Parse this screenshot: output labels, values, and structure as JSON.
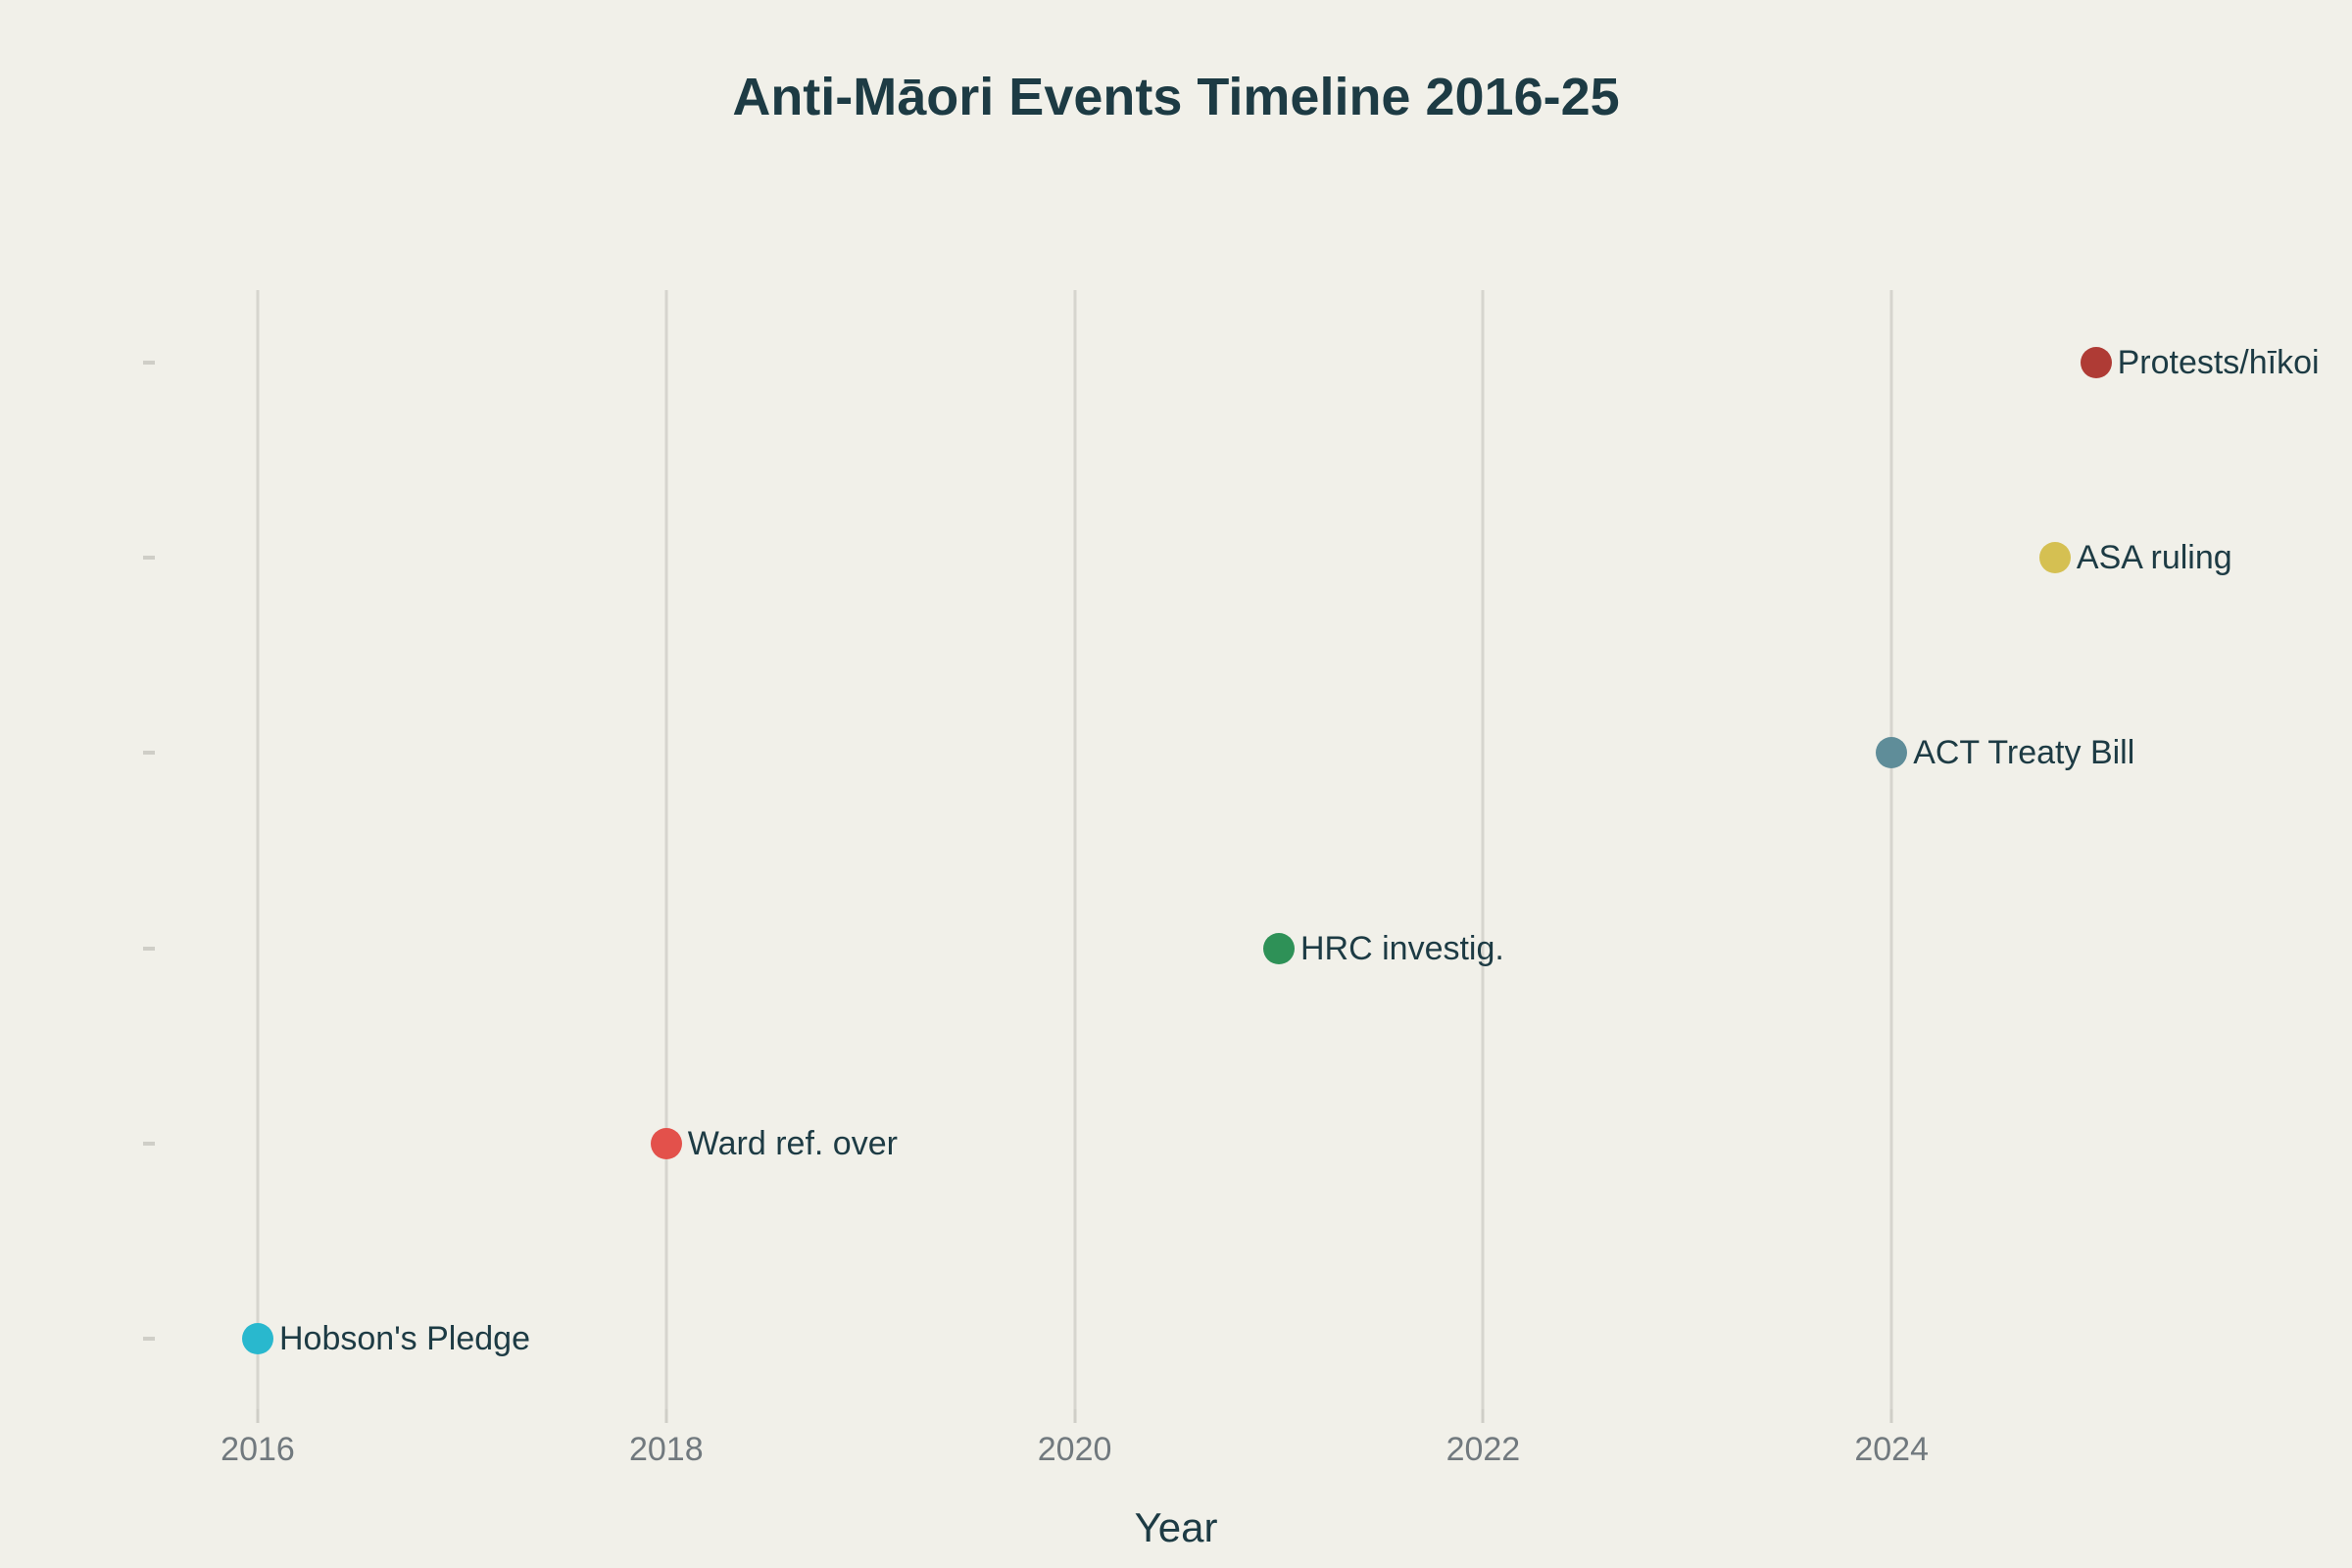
{
  "colors": {
    "background": "#f1f0e9",
    "text_dark": "#1d3b44",
    "tick_label": "#71797e",
    "gridline": "#d6d5ce",
    "tick_mark": "#cfcec7"
  },
  "chart_data": {
    "type": "scatter",
    "title": "Anti-Māori Events Timeline 2016-25",
    "xlabel": "Year",
    "ylabel": "",
    "x_ticks": [
      "2016",
      "2018",
      "2020",
      "2022",
      "2024"
    ],
    "x_tick_values": [
      2016,
      2018,
      2020,
      2022,
      2024
    ],
    "xlim": [
      2015.45,
      2025.25
    ],
    "grid": "vertical-only",
    "legend": "none",
    "events": [
      {
        "label": "Hobson's Pledge",
        "year": 2016,
        "row": 1,
        "color": "#29b8ce"
      },
      {
        "label": "Ward ref. over",
        "year": 2018,
        "row": 2,
        "color": "#e3514b"
      },
      {
        "label": "HRC investig.",
        "year": 2021,
        "row": 3,
        "color": "#2e9157"
      },
      {
        "label": "ACT Treaty Bill",
        "year": 2024,
        "row": 4,
        "color": "#5f8d99"
      },
      {
        "label": "ASA ruling",
        "year": 2024.8,
        "row": 5,
        "color": "#d5c052"
      },
      {
        "label": "Protests/hīkoi",
        "year": 2025,
        "row": 6,
        "color": "#af3b35"
      }
    ]
  }
}
